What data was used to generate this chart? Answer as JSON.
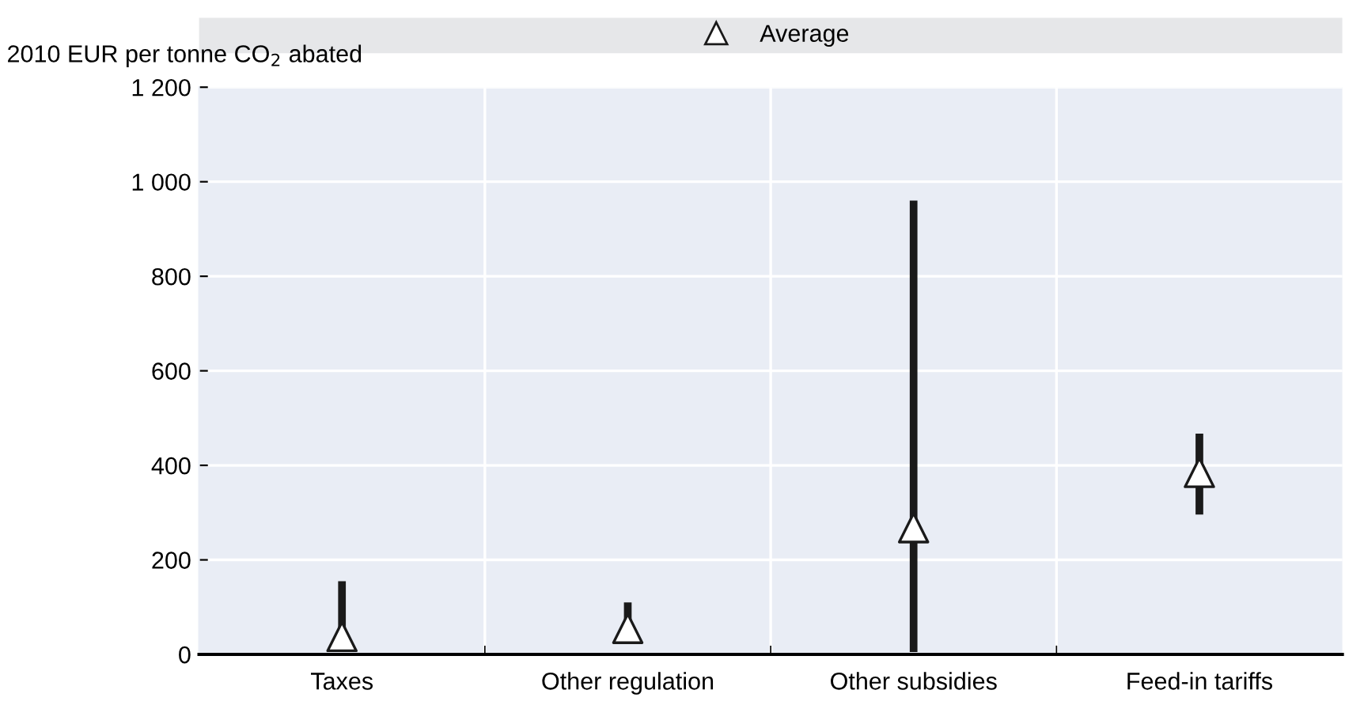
{
  "chart_data": {
    "type": "scatter",
    "ylabel": "2010 EUR per tonne CO$_{2}$ abated",
    "categories": [
      "Taxes",
      "Other regulation",
      "Other subsidies",
      "Feed-in tariffs"
    ],
    "series": [
      {
        "name": "Average",
        "color": "#ffffff",
        "values": [
          38,
          55,
          268,
          385
        ],
        "errors": [
          [
            5,
            155
          ],
          [
            26,
            110
          ],
          [
            5,
            960
          ],
          [
            296,
            467
          ]
        ]
      }
    ],
    "ylim": [
      0,
      1200
    ],
    "yticks": [
      0,
      200,
      400,
      600,
      800,
      {
        "value": 1000,
        "label": "1 000"
      },
      {
        "value": 1200,
        "label": "1 200"
      }
    ],
    "grid": true,
    "legend": "top",
    "marker": "triangle"
  }
}
